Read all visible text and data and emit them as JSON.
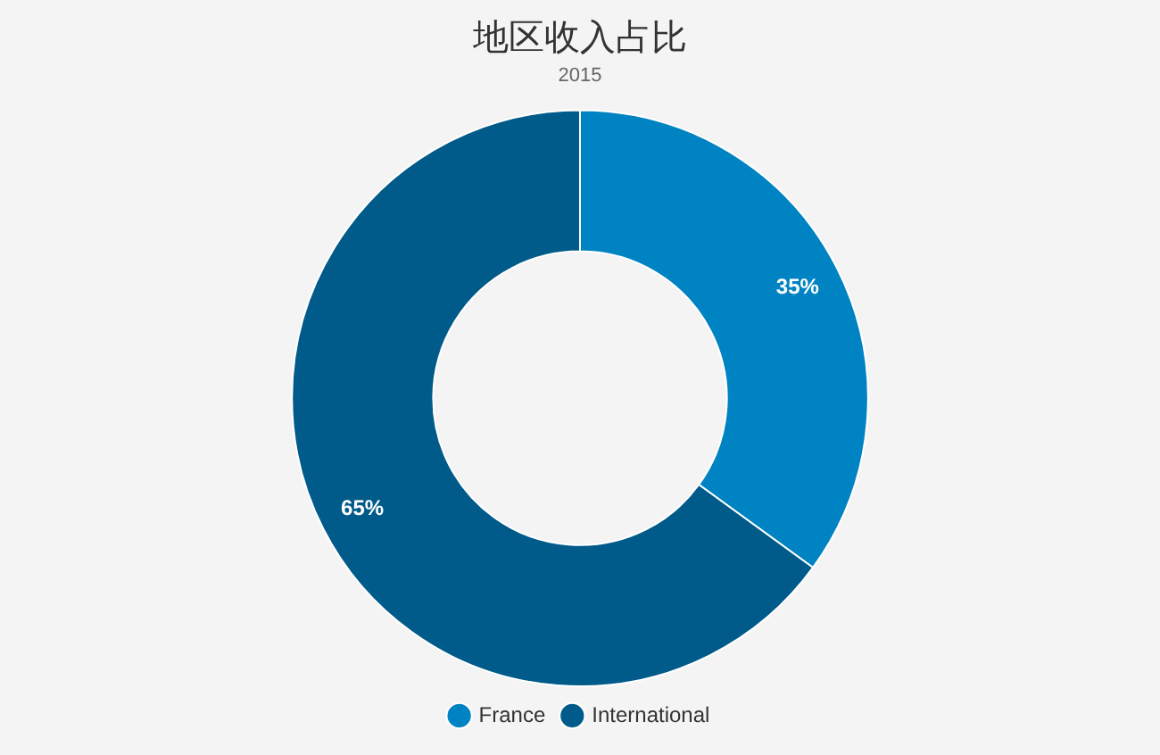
{
  "chart_data": {
    "type": "donut",
    "title": "地区收入占比",
    "subtitle": "2015",
    "categories": [
      "France",
      "International"
    ],
    "values": [
      35,
      65
    ],
    "colors": [
      "#0083c2",
      "#005b8a"
    ],
    "value_labels": [
      "35%",
      "65%"
    ],
    "legend": "bottom"
  }
}
